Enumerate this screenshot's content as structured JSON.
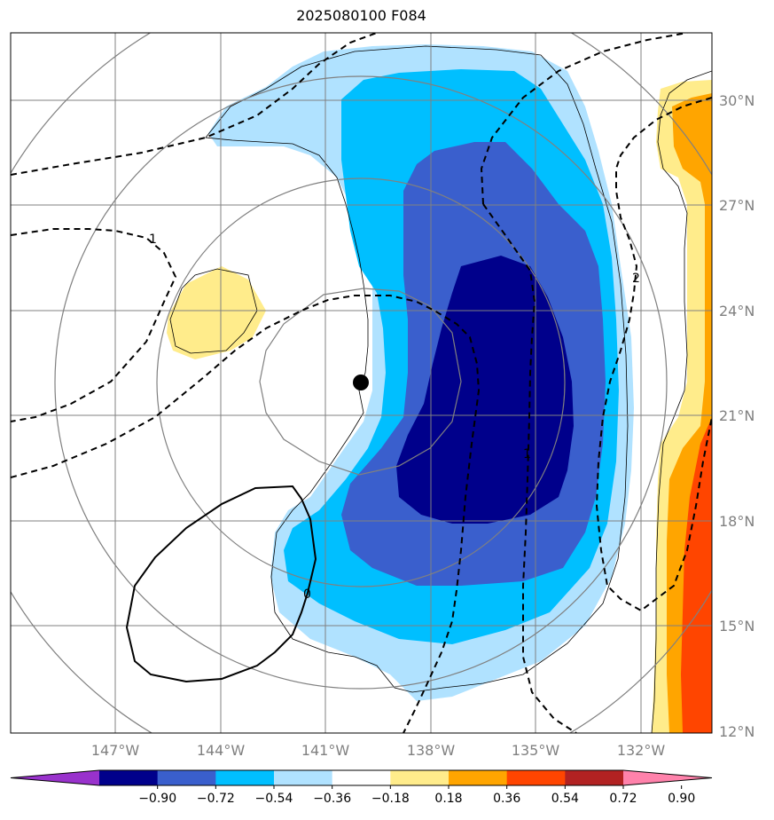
{
  "title": "2025080100 F084",
  "map": {
    "lon_range": [
      -151,
      -130
    ],
    "lat_range": [
      12,
      32
    ],
    "lat_labels": [
      "30°N",
      "27°N",
      "24°N",
      "21°N",
      "18°N",
      "15°N",
      "12°N"
    ],
    "lon_labels": [
      "147°W",
      "144°W",
      "141°W",
      "138°W",
      "135°W",
      "132°W"
    ],
    "storm_center": {
      "lon": -140.0,
      "lat": 22.0
    },
    "contour_labels": [
      "1",
      "2",
      "1",
      "0"
    ]
  },
  "colorbar": {
    "levels": [
      "−0.90",
      "−0.72",
      "−0.54",
      "−0.36",
      "−0.18",
      "0.18",
      "0.36",
      "0.54",
      "0.72",
      "0.90"
    ],
    "colors": [
      "#9932CC",
      "#00008B",
      "#3A5FCD",
      "#00BFFF",
      "#B0E2FF",
      "#FFFFFF",
      "#FFEC8B",
      "#FFA500",
      "#FF4500",
      "#B22222",
      "#FF82AB"
    ]
  },
  "fill_colors": {
    "light_blue": "#B0E2FF",
    "sky_blue": "#00BFFF",
    "royal_blue": "#3A5FCD",
    "navy": "#00008B",
    "light_yellow": "#FFEC8B",
    "orange": "#FFA500",
    "red_orange": "#FF4500"
  }
}
